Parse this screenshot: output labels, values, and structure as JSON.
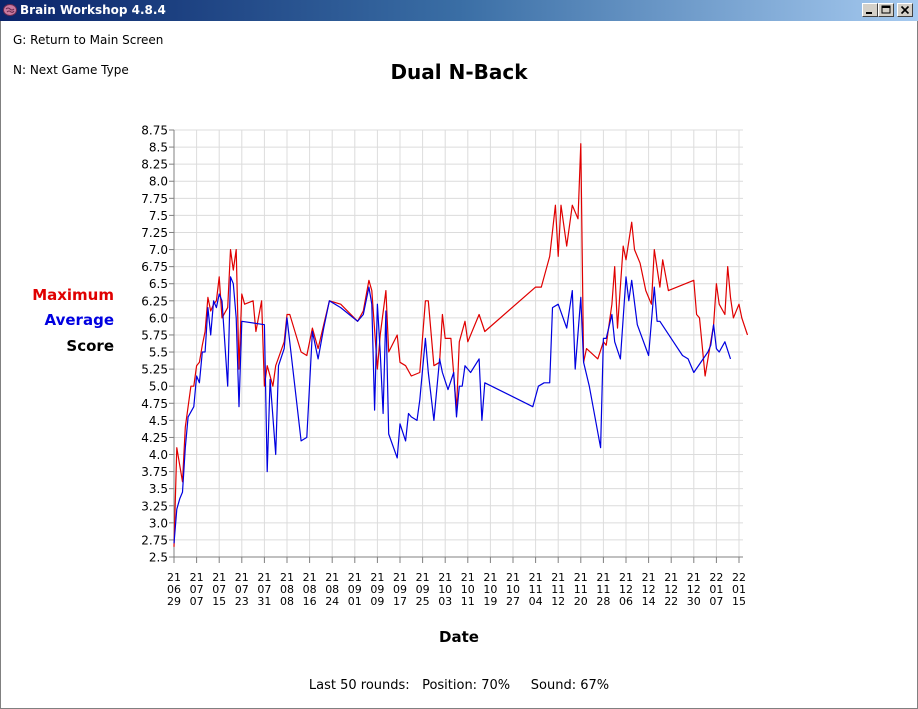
{
  "window": {
    "title": "Brain Workshop 4.8.4",
    "buttons": [
      "minimize-icon",
      "maximize-icon",
      "close-icon"
    ]
  },
  "menu": {
    "return": "G: Return to Main Screen",
    "next": "N: Next Game Type"
  },
  "footer": {
    "text": "Last 50 rounds:   Position: 70%     Sound: 67%"
  },
  "legend": {
    "maximum": "Maximum",
    "average": "Average",
    "score": "Score",
    "maximum_color": "#e00000",
    "average_color": "#0000e0",
    "score_color": "#000000"
  },
  "chart_data": {
    "type": "line",
    "title": "Dual N-Back",
    "xlabel": "Date",
    "ylabel": "Score",
    "ylim": [
      2.5,
      8.75
    ],
    "yticks": [
      "2.5",
      "2.75",
      "3.0",
      "3.25",
      "3.5",
      "3.75",
      "4.0",
      "4.25",
      "4.5",
      "4.75",
      "5.0",
      "5.25",
      "5.5",
      "5.75",
      "6.0",
      "6.25",
      "6.5",
      "6.75",
      "7.0",
      "7.25",
      "7.5",
      "7.75",
      "8.0",
      "8.25",
      "8.5",
      "8.75"
    ],
    "xticks": [
      {
        "date": "2021-06-29",
        "label": [
          "21",
          "06",
          "29"
        ]
      },
      {
        "date": "2021-07-07",
        "label": [
          "21",
          "07",
          "07"
        ]
      },
      {
        "date": "2021-07-15",
        "label": [
          "21",
          "07",
          "15"
        ]
      },
      {
        "date": "2021-07-23",
        "label": [
          "21",
          "07",
          "23"
        ]
      },
      {
        "date": "2021-07-31",
        "label": [
          "21",
          "07",
          "31"
        ]
      },
      {
        "date": "2021-08-08",
        "label": [
          "21",
          "08",
          "08"
        ]
      },
      {
        "date": "2021-08-16",
        "label": [
          "21",
          "08",
          "16"
        ]
      },
      {
        "date": "2021-08-24",
        "label": [
          "21",
          "08",
          "24"
        ]
      },
      {
        "date": "2021-09-01",
        "label": [
          "21",
          "09",
          "01"
        ]
      },
      {
        "date": "2021-09-09",
        "label": [
          "21",
          "09",
          "09"
        ]
      },
      {
        "date": "2021-09-17",
        "label": [
          "21",
          "09",
          "17"
        ]
      },
      {
        "date": "2021-09-25",
        "label": [
          "21",
          "09",
          "25"
        ]
      },
      {
        "date": "2021-10-03",
        "label": [
          "21",
          "10",
          "03"
        ]
      },
      {
        "date": "2021-10-11",
        "label": [
          "21",
          "10",
          "11"
        ]
      },
      {
        "date": "2021-10-19",
        "label": [
          "21",
          "10",
          "19"
        ]
      },
      {
        "date": "2021-10-27",
        "label": [
          "21",
          "10",
          "27"
        ]
      },
      {
        "date": "2021-11-04",
        "label": [
          "21",
          "11",
          "04"
        ]
      },
      {
        "date": "2021-11-12",
        "label": [
          "21",
          "11",
          "12"
        ]
      },
      {
        "date": "2021-11-20",
        "label": [
          "21",
          "11",
          "20"
        ]
      },
      {
        "date": "2021-11-28",
        "label": [
          "21",
          "11",
          "28"
        ]
      },
      {
        "date": "2021-12-06",
        "label": [
          "21",
          "12",
          "06"
        ]
      },
      {
        "date": "2021-12-14",
        "label": [
          "21",
          "12",
          "14"
        ]
      },
      {
        "date": "2021-12-22",
        "label": [
          "21",
          "12",
          "22"
        ]
      },
      {
        "date": "2021-12-30",
        "label": [
          "21",
          "12",
          "30"
        ]
      },
      {
        "date": "2022-01-07",
        "label": [
          "22",
          "01",
          "07"
        ]
      },
      {
        "date": "2022-01-15",
        "label": [
          "22",
          "01",
          "15"
        ]
      }
    ],
    "grid": true,
    "series": [
      {
        "name": "Maximum",
        "color": "#e00000",
        "points": [
          [
            "2021-06-29",
            2.65
          ],
          [
            "2021-06-30",
            4.1
          ],
          [
            "2021-07-02",
            3.6
          ],
          [
            "2021-07-03",
            4.4
          ],
          [
            "2021-07-05",
            5.0
          ],
          [
            "2021-07-06",
            5.0
          ],
          [
            "2021-07-07",
            5.3
          ],
          [
            "2021-07-08",
            5.35
          ],
          [
            "2021-07-09",
            5.6
          ],
          [
            "2021-07-10",
            5.8
          ],
          [
            "2021-07-11",
            6.3
          ],
          [
            "2021-07-12",
            6.1
          ],
          [
            "2021-07-13",
            6.2
          ],
          [
            "2021-07-14",
            6.25
          ],
          [
            "2021-07-15",
            6.6
          ],
          [
            "2021-07-16",
            6.0
          ],
          [
            "2021-07-18",
            6.15
          ],
          [
            "2021-07-19",
            7.0
          ],
          [
            "2021-07-20",
            6.7
          ],
          [
            "2021-07-21",
            7.0
          ],
          [
            "2021-07-22",
            5.25
          ],
          [
            "2021-07-23",
            6.35
          ],
          [
            "2021-07-24",
            6.2
          ],
          [
            "2021-07-27",
            6.25
          ],
          [
            "2021-07-28",
            5.8
          ],
          [
            "2021-07-30",
            6.25
          ],
          [
            "2021-07-31",
            5.0
          ],
          [
            "2021-08-01",
            5.3
          ],
          [
            "2021-08-03",
            5.0
          ],
          [
            "2021-08-04",
            5.3
          ],
          [
            "2021-08-07",
            5.65
          ],
          [
            "2021-08-08",
            6.05
          ],
          [
            "2021-08-09",
            6.05
          ],
          [
            "2021-08-13",
            5.5
          ],
          [
            "2021-08-15",
            5.45
          ],
          [
            "2021-08-17",
            5.85
          ],
          [
            "2021-08-19",
            5.55
          ],
          [
            "2021-08-21",
            5.9
          ],
          [
            "2021-08-23",
            6.25
          ],
          [
            "2021-08-27",
            6.2
          ],
          [
            "2021-09-02",
            5.95
          ],
          [
            "2021-09-04",
            6.1
          ],
          [
            "2021-09-06",
            6.55
          ],
          [
            "2021-09-07",
            6.4
          ],
          [
            "2021-09-09",
            5.25
          ],
          [
            "2021-09-10",
            5.75
          ],
          [
            "2021-09-12",
            6.4
          ],
          [
            "2021-09-13",
            5.5
          ],
          [
            "2021-09-16",
            5.75
          ],
          [
            "2021-09-17",
            5.35
          ],
          [
            "2021-09-19",
            5.3
          ],
          [
            "2021-09-21",
            5.15
          ],
          [
            "2021-09-24",
            5.2
          ],
          [
            "2021-09-26",
            6.25
          ],
          [
            "2021-09-27",
            6.25
          ],
          [
            "2021-09-29",
            5.3
          ],
          [
            "2021-10-01",
            5.35
          ],
          [
            "2021-10-02",
            6.05
          ],
          [
            "2021-10-03",
            5.7
          ],
          [
            "2021-10-05",
            5.7
          ],
          [
            "2021-10-07",
            4.65
          ],
          [
            "2021-10-08",
            5.65
          ],
          [
            "2021-10-10",
            5.95
          ],
          [
            "2021-10-11",
            5.65
          ],
          [
            "2021-10-15",
            6.05
          ],
          [
            "2021-10-17",
            5.8
          ],
          [
            "2021-11-04",
            6.45
          ],
          [
            "2021-11-06",
            6.45
          ],
          [
            "2021-11-09",
            6.9
          ],
          [
            "2021-11-11",
            7.65
          ],
          [
            "2021-11-12",
            6.9
          ],
          [
            "2021-11-13",
            7.65
          ],
          [
            "2021-11-15",
            7.05
          ],
          [
            "2021-11-17",
            7.65
          ],
          [
            "2021-11-19",
            7.45
          ],
          [
            "2021-11-20",
            8.55
          ],
          [
            "2021-11-21",
            5.35
          ],
          [
            "2021-11-22",
            5.55
          ],
          [
            "2021-11-26",
            5.4
          ],
          [
            "2021-11-28",
            5.65
          ],
          [
            "2021-11-29",
            5.6
          ],
          [
            "2021-12-01",
            6.2
          ],
          [
            "2021-12-02",
            6.75
          ],
          [
            "2021-12-03",
            5.85
          ],
          [
            "2021-12-05",
            7.05
          ],
          [
            "2021-12-06",
            6.85
          ],
          [
            "2021-12-08",
            7.4
          ],
          [
            "2021-12-09",
            7.0
          ],
          [
            "2021-12-11",
            6.8
          ],
          [
            "2021-12-13",
            6.4
          ],
          [
            "2021-12-15",
            6.2
          ],
          [
            "2021-12-16",
            7.0
          ],
          [
            "2021-12-18",
            6.45
          ],
          [
            "2021-12-19",
            6.85
          ],
          [
            "2021-12-21",
            6.4
          ],
          [
            "2021-12-30",
            6.55
          ],
          [
            "2021-12-31",
            6.05
          ],
          [
            "2022-01-01",
            6.0
          ],
          [
            "2022-01-03",
            5.15
          ],
          [
            "2022-01-06",
            5.9
          ],
          [
            "2022-01-07",
            6.5
          ],
          [
            "2022-01-08",
            6.2
          ],
          [
            "2022-01-10",
            6.05
          ],
          [
            "2022-01-11",
            6.75
          ],
          [
            "2022-01-12",
            6.3
          ],
          [
            "2022-01-13",
            6.0
          ],
          [
            "2022-01-15",
            6.2
          ],
          [
            "2022-01-16",
            6.0
          ],
          [
            "2022-01-18",
            5.75
          ]
        ]
      },
      {
        "name": "Average",
        "color": "#0000e0",
        "points": [
          [
            "2021-06-29",
            2.7
          ],
          [
            "2021-06-30",
            3.2
          ],
          [
            "2021-07-01",
            3.35
          ],
          [
            "2021-07-02",
            3.45
          ],
          [
            "2021-07-03",
            4.1
          ],
          [
            "2021-07-04",
            4.55
          ],
          [
            "2021-07-06",
            4.7
          ],
          [
            "2021-07-07",
            5.15
          ],
          [
            "2021-07-08",
            5.05
          ],
          [
            "2021-07-09",
            5.5
          ],
          [
            "2021-07-10",
            5.5
          ],
          [
            "2021-07-11",
            6.15
          ],
          [
            "2021-07-12",
            5.75
          ],
          [
            "2021-07-13",
            6.25
          ],
          [
            "2021-07-14",
            6.15
          ],
          [
            "2021-07-15",
            6.35
          ],
          [
            "2021-07-16",
            6.25
          ],
          [
            "2021-07-18",
            5.0
          ],
          [
            "2021-07-19",
            6.6
          ],
          [
            "2021-07-20",
            6.5
          ],
          [
            "2021-07-21",
            6.0
          ],
          [
            "2021-07-22",
            4.7
          ],
          [
            "2021-07-23",
            5.95
          ],
          [
            "2021-07-31",
            5.9
          ],
          [
            "2021-08-01",
            3.75
          ],
          [
            "2021-08-02",
            5.1
          ],
          [
            "2021-08-04",
            4.0
          ],
          [
            "2021-08-05",
            5.3
          ],
          [
            "2021-08-07",
            5.55
          ],
          [
            "2021-08-08",
            6.0
          ],
          [
            "2021-08-13",
            4.2
          ],
          [
            "2021-08-15",
            4.25
          ],
          [
            "2021-08-17",
            5.8
          ],
          [
            "2021-08-19",
            5.4
          ],
          [
            "2021-08-21",
            5.85
          ],
          [
            "2021-08-23",
            6.25
          ],
          [
            "2021-08-27",
            6.15
          ],
          [
            "2021-09-02",
            5.95
          ],
          [
            "2021-09-04",
            6.05
          ],
          [
            "2021-09-06",
            6.45
          ],
          [
            "2021-09-07",
            6.2
          ],
          [
            "2021-09-08",
            4.65
          ],
          [
            "2021-09-09",
            6.2
          ],
          [
            "2021-09-10",
            5.5
          ],
          [
            "2021-09-11",
            4.6
          ],
          [
            "2021-09-12",
            6.1
          ],
          [
            "2021-09-13",
            4.3
          ],
          [
            "2021-09-16",
            3.95
          ],
          [
            "2021-09-17",
            4.45
          ],
          [
            "2021-09-19",
            4.2
          ],
          [
            "2021-09-20",
            4.6
          ],
          [
            "2021-09-21",
            4.55
          ],
          [
            "2021-09-23",
            4.5
          ],
          [
            "2021-09-24",
            4.8
          ],
          [
            "2021-09-26",
            5.7
          ],
          [
            "2021-09-27",
            5.2
          ],
          [
            "2021-09-29",
            4.5
          ],
          [
            "2021-10-01",
            5.4
          ],
          [
            "2021-10-02",
            5.2
          ],
          [
            "2021-10-04",
            4.95
          ],
          [
            "2021-10-06",
            5.2
          ],
          [
            "2021-10-07",
            4.55
          ],
          [
            "2021-10-08",
            5.0
          ],
          [
            "2021-10-09",
            5.0
          ],
          [
            "2021-10-10",
            5.3
          ],
          [
            "2021-10-11",
            5.25
          ],
          [
            "2021-10-12",
            5.2
          ],
          [
            "2021-10-15",
            5.4
          ],
          [
            "2021-10-16",
            4.5
          ],
          [
            "2021-10-17",
            5.05
          ],
          [
            "2021-11-03",
            4.7
          ],
          [
            "2021-11-05",
            5.0
          ],
          [
            "2021-11-07",
            5.05
          ],
          [
            "2021-11-09",
            5.05
          ],
          [
            "2021-11-10",
            6.15
          ],
          [
            "2021-11-12",
            6.2
          ],
          [
            "2021-11-15",
            5.85
          ],
          [
            "2021-11-17",
            6.4
          ],
          [
            "2021-11-18",
            5.25
          ],
          [
            "2021-11-20",
            6.3
          ],
          [
            "2021-11-21",
            5.35
          ],
          [
            "2021-11-23",
            5.0
          ],
          [
            "2021-11-27",
            4.1
          ],
          [
            "2021-11-28",
            5.7
          ],
          [
            "2021-11-29",
            5.7
          ],
          [
            "2021-12-01",
            6.05
          ],
          [
            "2021-12-02",
            5.65
          ],
          [
            "2021-12-04",
            5.4
          ],
          [
            "2021-12-06",
            6.6
          ],
          [
            "2021-12-07",
            6.25
          ],
          [
            "2021-12-08",
            6.55
          ],
          [
            "2021-12-10",
            5.9
          ],
          [
            "2021-12-14",
            5.45
          ],
          [
            "2021-12-16",
            6.45
          ],
          [
            "2021-12-17",
            5.95
          ],
          [
            "2021-12-18",
            5.95
          ],
          [
            "2021-12-22",
            5.7
          ],
          [
            "2021-12-26",
            5.45
          ],
          [
            "2021-12-28",
            5.4
          ],
          [
            "2021-12-30",
            5.2
          ],
          [
            "2022-01-04",
            5.5
          ],
          [
            "2022-01-05",
            5.6
          ],
          [
            "2022-01-06",
            5.9
          ],
          [
            "2022-01-07",
            5.55
          ],
          [
            "2022-01-08",
            5.5
          ],
          [
            "2022-01-10",
            5.65
          ],
          [
            "2022-01-12",
            5.4
          ]
        ]
      }
    ]
  }
}
